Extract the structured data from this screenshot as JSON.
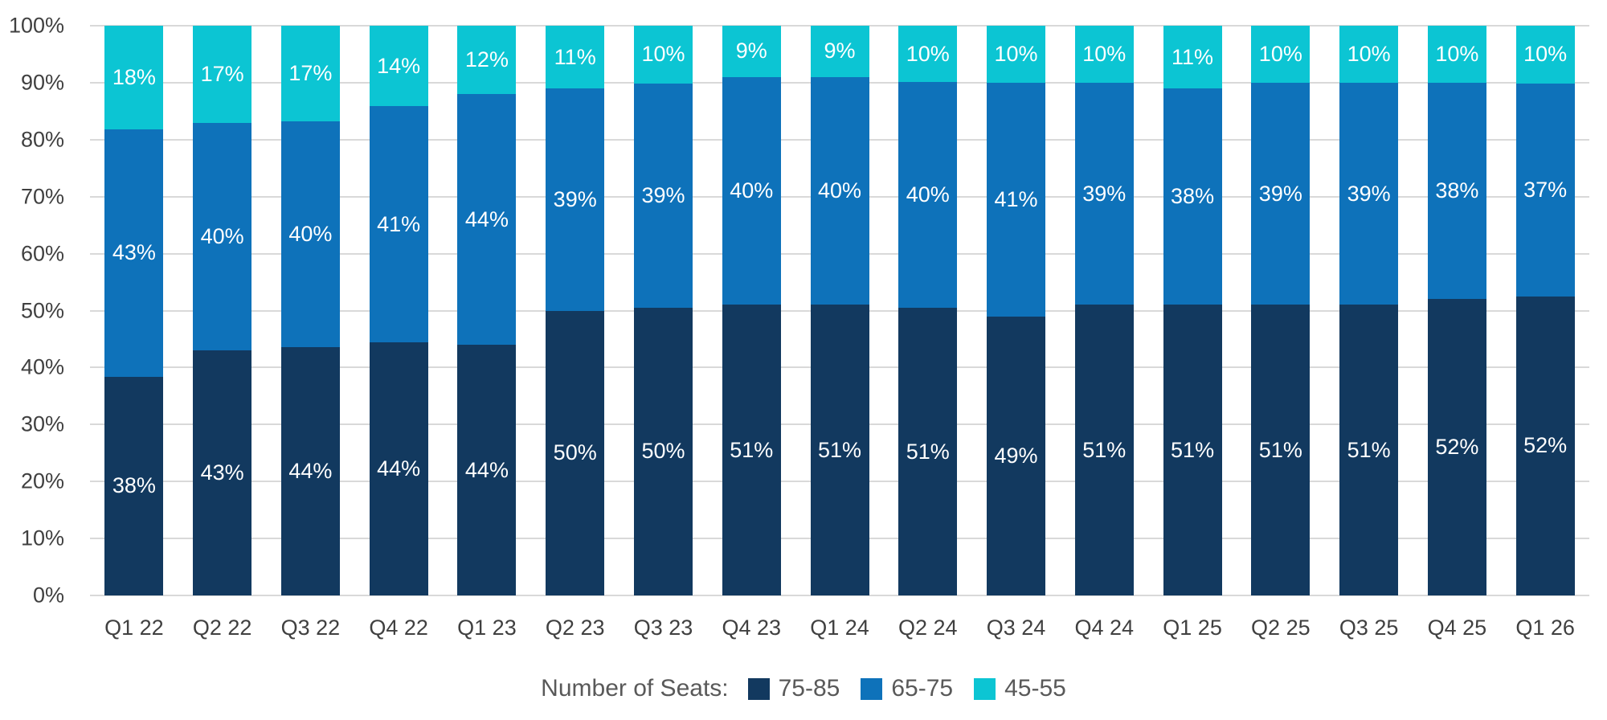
{
  "chart_data": {
    "type": "bar",
    "subtype": "stacked-100-percent-column",
    "title": "",
    "xlabel": "",
    "ylabel": "",
    "categories": [
      "Q1 22",
      "Q2 22",
      "Q3 22",
      "Q4 22",
      "Q1 23",
      "Q2 23",
      "Q3 23",
      "Q4 23",
      "Q1 24",
      "Q2 24",
      "Q3 24",
      "Q4 24",
      "Q1 25",
      "Q2 25",
      "Q3 25",
      "Q4 25",
      "Q1 26"
    ],
    "series": [
      {
        "name": "75-85",
        "color": "#12395f",
        "values": [
          38,
          43,
          44,
          44,
          44,
          50,
          50,
          51,
          51,
          51,
          49,
          51,
          51,
          51,
          51,
          52,
          52
        ]
      },
      {
        "name": "65-75",
        "color": "#0e72ba",
        "values": [
          43,
          40,
          40,
          41,
          44,
          39,
          39,
          40,
          40,
          40,
          41,
          39,
          38,
          39,
          39,
          38,
          37
        ]
      },
      {
        "name": "45-55",
        "color": "#0cc5d3",
        "values": [
          18,
          17,
          17,
          14,
          12,
          11,
          10,
          9,
          9,
          10,
          10,
          10,
          11,
          10,
          10,
          10,
          10
        ]
      }
    ],
    "stack_order_bottom_to_top": [
      "75-85",
      "65-75",
      "45-55"
    ],
    "y_axis": {
      "min": 0,
      "max": 100,
      "tick_step": 10,
      "ticks": [
        0,
        10,
        20,
        30,
        40,
        50,
        60,
        70,
        80,
        90,
        100
      ],
      "tick_label_suffix": "%",
      "grid": true
    },
    "data_label_suffix": "%",
    "legend": {
      "title": "Number of Seats:",
      "position": "bottom"
    }
  },
  "colors": {
    "background": "#ffffff",
    "gridline": "#d9d9d9",
    "axis_text": "#404040",
    "legend_text": "#595959",
    "data_label_text": "#ffffff"
  }
}
